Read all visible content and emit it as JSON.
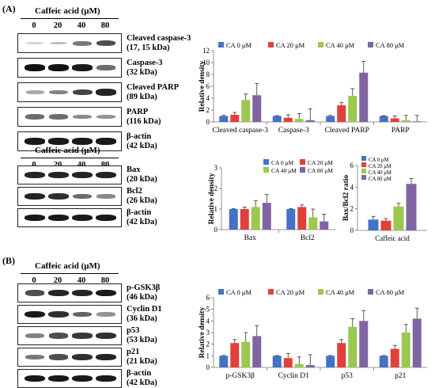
{
  "colors": {
    "ca0": "#4472C4",
    "ca20": "#E0403A",
    "ca40": "#9BC84F",
    "ca80": "#8064A2"
  },
  "panels": {
    "a": "(A)",
    "b": "(B)"
  },
  "treatment_title": "Caffeic acid (μM)",
  "doses": [
    "0",
    "20",
    "40",
    "80"
  ],
  "blots_top": [
    {
      "name": "Cleaved caspase-3",
      "kda": "(17, 15 kDa)",
      "intensity": [
        0.05,
        0.15,
        0.5,
        0.7
      ]
    },
    {
      "name": "Caspase-3",
      "kda": "(32 kDa)",
      "intensity": [
        1,
        1,
        0.95,
        0.55
      ]
    },
    {
      "name": "Cleaved PARP",
      "kda": "(89 kDa)",
      "intensity": [
        0.25,
        0.45,
        0.75,
        0.9
      ]
    },
    {
      "name": "PARP",
      "kda": "(116 kDa)",
      "intensity": [
        0.55,
        0.55,
        0.4,
        0.35
      ]
    },
    {
      "name": "β-actin",
      "kda": "(42 kDa)",
      "intensity": [
        0.95,
        0.95,
        0.95,
        0.95
      ]
    }
  ],
  "blots_mid": [
    {
      "name": "Bax",
      "kda": "(20 kDa)",
      "intensity": [
        0.9,
        0.9,
        0.9,
        0.9
      ]
    },
    {
      "name": "Bcl2",
      "kda": "(26 kDa)",
      "intensity": [
        0.9,
        0.85,
        0.55,
        0.4
      ]
    },
    {
      "name": "β-actin",
      "kda": "(42 kDa)",
      "intensity": [
        0.95,
        0.95,
        0.95,
        0.95
      ]
    }
  ],
  "blots_b": [
    {
      "name": "p-GSK3β",
      "kda": "(46 kDa)",
      "intensity": [
        0.7,
        0.9,
        0.9,
        0.95
      ]
    },
    {
      "name": "Cyclin D1",
      "kda": "(36 kDa)",
      "intensity": [
        0.95,
        0.85,
        0.6,
        0.35
      ]
    },
    {
      "name": "p53",
      "kda": "(53 kDa)",
      "intensity": [
        0.45,
        0.7,
        0.8,
        0.85
      ]
    },
    {
      "name": "p21",
      "kda": "(21 kDa)",
      "intensity": [
        0.5,
        0.7,
        0.85,
        0.9
      ]
    },
    {
      "name": "β-actin",
      "kda": "(42 kDa)",
      "intensity": [
        0.95,
        0.95,
        0.95,
        0.95
      ]
    }
  ],
  "chart_data": [
    {
      "type": "bar",
      "ylabel": "Relative density",
      "ylim": [
        0,
        12
      ],
      "yticks": [
        0,
        2,
        4,
        6,
        8,
        10,
        12
      ],
      "legend": "top",
      "categories": [
        "Cleaved caspase-3",
        "Caspase-3",
        "Cleaved PARP",
        "PARP"
      ],
      "series": [
        {
          "name": "CA 0 μM",
          "values": [
            1,
            1,
            1,
            1
          ],
          "errors": [
            0.1,
            0.05,
            0.1,
            0.05
          ]
        },
        {
          "name": "CA 20 μM",
          "values": [
            1.2,
            0.7,
            2.8,
            0.6
          ],
          "errors": [
            0.4,
            0.5,
            0.5,
            0.4
          ]
        },
        {
          "name": "CA 40 μM",
          "values": [
            3.7,
            0.5,
            4.4,
            0.3
          ],
          "errors": [
            1.0,
            0.9,
            1.2,
            0.8
          ]
        },
        {
          "name": "CA 80 μM",
          "values": [
            4.5,
            0.3,
            8.3,
            0.1
          ],
          "errors": [
            2.0,
            1.9,
            1.9,
            1.0
          ]
        }
      ]
    },
    {
      "type": "bar",
      "ylabel": "Relative density",
      "ylim": [
        0,
        3
      ],
      "yticks": [
        0,
        1,
        2,
        3
      ],
      "legend": "top-right",
      "categories": [
        "Bax",
        "Bcl2"
      ],
      "series": [
        {
          "name": "CA 0 μM",
          "values": [
            1,
            1
          ],
          "errors": [
            0.02,
            0.02
          ]
        },
        {
          "name": "CA 20 μM",
          "values": [
            1,
            1.1
          ],
          "errors": [
            0.1,
            0.1
          ]
        },
        {
          "name": "CA 40 μM",
          "values": [
            1.1,
            0.6
          ],
          "errors": [
            0.3,
            0.4
          ]
        },
        {
          "name": "CA 80 μM",
          "values": [
            1.3,
            0.4
          ],
          "errors": [
            0.4,
            0.35
          ]
        }
      ]
    },
    {
      "type": "bar",
      "ylabel": "Bax/Bcl2 ratio",
      "ylim": [
        0,
        6
      ],
      "yticks": [
        0,
        2,
        4,
        6
      ],
      "legend": "top-left",
      "categories": [
        "Caffeic acid"
      ],
      "series": [
        {
          "name": "CA 0 μM",
          "values": [
            1
          ],
          "errors": [
            0.3
          ]
        },
        {
          "name": "CA 20 μM",
          "values": [
            0.9
          ],
          "errors": [
            0.2
          ]
        },
        {
          "name": "CA 40 μM",
          "values": [
            2.2
          ],
          "errors": [
            0.3
          ]
        },
        {
          "name": "CA 80 μM",
          "values": [
            4.3
          ],
          "errors": [
            0.5
          ]
        }
      ]
    },
    {
      "type": "bar",
      "ylabel": "Relative density",
      "ylim": [
        0,
        6
      ],
      "yticks": [
        0,
        1,
        2,
        3,
        4,
        5,
        6
      ],
      "legend": "top",
      "categories": [
        "p-GSK3β",
        "Cyclin D1",
        "p53",
        "p21"
      ],
      "series": [
        {
          "name": "CA 0 μM",
          "values": [
            1,
            1,
            1,
            1
          ],
          "errors": [
            0.03,
            0.03,
            0.03,
            0.03
          ]
        },
        {
          "name": "CA 20 μM",
          "values": [
            2.1,
            0.8,
            2.1,
            1.6
          ],
          "errors": [
            0.3,
            0.4,
            0.3,
            0.3
          ]
        },
        {
          "name": "CA 40 μM",
          "values": [
            2.2,
            0.3,
            3.5,
            3.0
          ],
          "errors": [
            0.8,
            0.6,
            0.7,
            0.7
          ]
        },
        {
          "name": "CA 80 μM",
          "values": [
            2.7,
            0.2,
            4.0,
            4.2
          ],
          "errors": [
            0.9,
            0.9,
            0.9,
            0.9
          ]
        }
      ]
    }
  ]
}
